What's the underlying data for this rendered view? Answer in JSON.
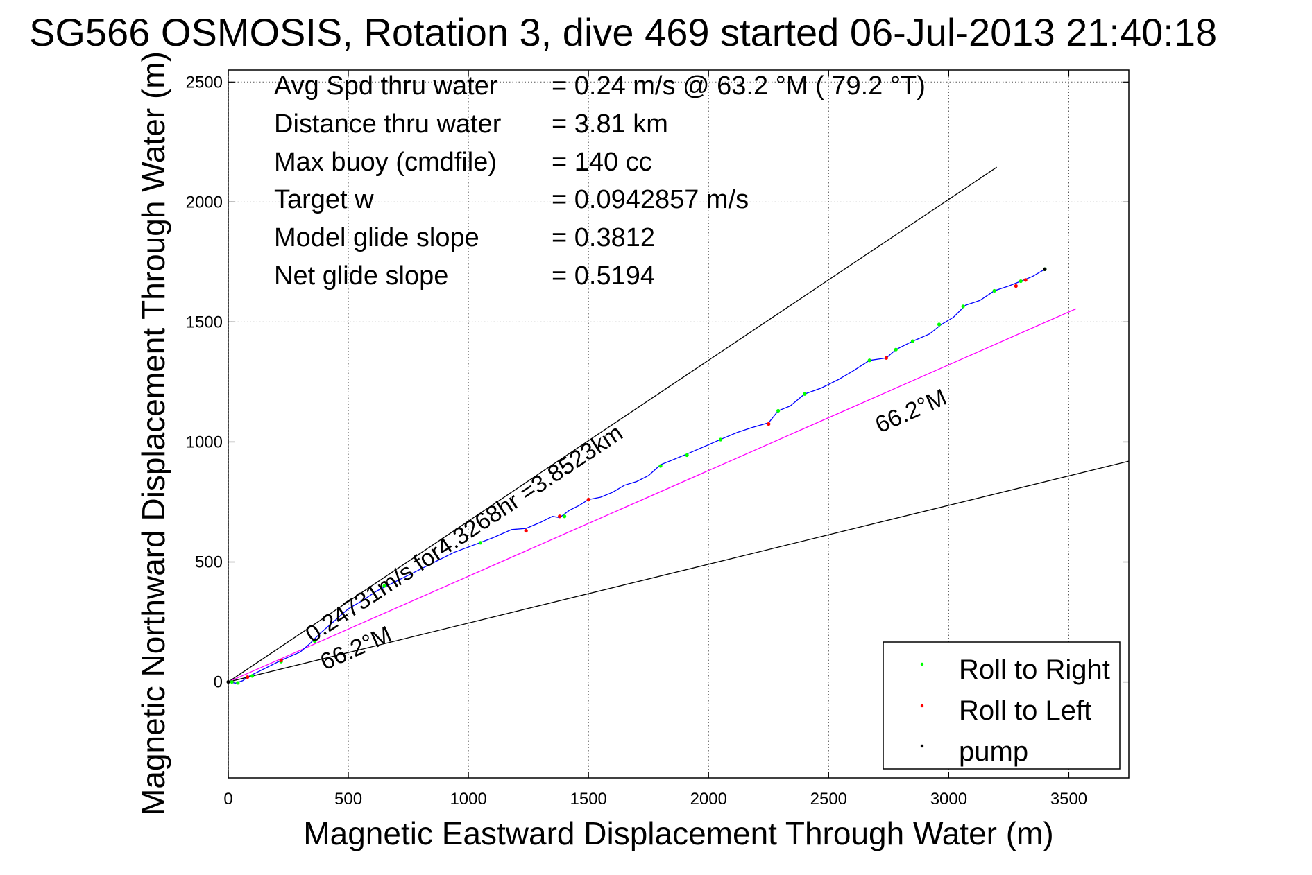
{
  "chart_data": {
    "type": "scatter",
    "title": "SG566 OSMOSIS, Rotation 3, dive 469 started 06-Jul-2013 21:40:18",
    "xlabel": "Magnetic Eastward Displacement Through Water (m)",
    "ylabel": "Magnetic Northward Displacement Through Water (m)",
    "xlim": [
      0,
      3750
    ],
    "ylim": [
      -400,
      2550
    ],
    "xticks": [
      0,
      500,
      1000,
      1500,
      2000,
      2500,
      3000,
      3500
    ],
    "yticks": [
      0,
      500,
      1000,
      1500,
      2000,
      2500
    ],
    "grid": true,
    "legend_position": "bottom-right",
    "info_lines": [
      {
        "label": "Avg Spd thru water",
        "value": "=  0.24 m/s @  63.2 °M ( 79.2 °T)"
      },
      {
        "label": "Distance thru water",
        "value": "=  3.81 km"
      },
      {
        "label": "Max buoy (cmdfile)",
        "value": "= 140 cc"
      },
      {
        "label": "Target w",
        "value": "= 0.0942857 m/s"
      },
      {
        "label": "Model glide slope",
        "value": "= 0.3812"
      },
      {
        "label": "Net glide slope",
        "value": "= 0.5194"
      }
    ],
    "annotations": {
      "current": "0.24731m/s for4.3268hr =3.8523km",
      "heading_upper": "66.2°M",
      "heading_lower": "66.2°M"
    },
    "reference_lines": [
      {
        "name": "upper-bound",
        "color": "#000000",
        "x": [
          0,
          3200
        ],
        "y": [
          0,
          2145
        ]
      },
      {
        "name": "lower-bound",
        "color": "#000000",
        "x": [
          0,
          3750
        ],
        "y": [
          0,
          920
        ]
      },
      {
        "name": "heading-line",
        "color": "#ff00ff",
        "x": [
          0,
          3530
        ],
        "y": [
          0,
          1555
        ]
      }
    ],
    "track": {
      "color": "#0000ff",
      "x": [
        0,
        30,
        60,
        80,
        150,
        220,
        300,
        340,
        380,
        420,
        460,
        500,
        560,
        620,
        700,
        780,
        860,
        940,
        1020,
        1100,
        1180,
        1240,
        1300,
        1350,
        1380,
        1420,
        1460,
        1500,
        1550,
        1600,
        1650,
        1700,
        1750,
        1800,
        1850,
        1910,
        1980,
        2060,
        2120,
        2180,
        2250,
        2290,
        2340,
        2400,
        2470,
        2540,
        2600,
        2670,
        2740,
        2780,
        2850,
        2920,
        2970,
        3020,
        3070,
        3130,
        3190,
        3250,
        3300,
        3350,
        3400
      ],
      "y": [
        0,
        -5,
        5,
        20,
        55,
        90,
        125,
        160,
        200,
        235,
        270,
        305,
        340,
        380,
        420,
        460,
        500,
        540,
        570,
        600,
        635,
        640,
        665,
        690,
        685,
        715,
        735,
        760,
        770,
        790,
        820,
        835,
        860,
        905,
        925,
        950,
        980,
        1015,
        1040,
        1060,
        1080,
        1130,
        1150,
        1200,
        1225,
        1260,
        1295,
        1340,
        1350,
        1385,
        1420,
        1450,
        1490,
        1520,
        1570,
        1590,
        1630,
        1650,
        1670,
        1690,
        1720
      ]
    },
    "series": [
      {
        "name": "Roll to Right",
        "color": "#00ff00",
        "x": [
          15,
          40,
          100,
          220,
          360,
          650,
          1050,
          1400,
          1800,
          1910,
          2050,
          2290,
          2400,
          2670,
          2780,
          2850,
          2960,
          3060,
          3190,
          3300,
          3400
        ],
        "y": [
          0,
          -4,
          25,
          85,
          170,
          400,
          580,
          690,
          900,
          945,
          1010,
          1130,
          1200,
          1340,
          1385,
          1420,
          1490,
          1565,
          1630,
          1670,
          1720
        ]
      },
      {
        "name": "Roll to Left",
        "color": "#ff0000",
        "x": [
          80,
          220,
          1240,
          1380,
          1500,
          2250,
          2740,
          3280,
          3320
        ],
        "y": [
          20,
          90,
          630,
          690,
          760,
          1075,
          1350,
          1650,
          1675
        ]
      },
      {
        "name": "pump",
        "color": "#000000",
        "x": [
          0,
          3400
        ],
        "y": [
          0,
          1720
        ]
      }
    ]
  }
}
